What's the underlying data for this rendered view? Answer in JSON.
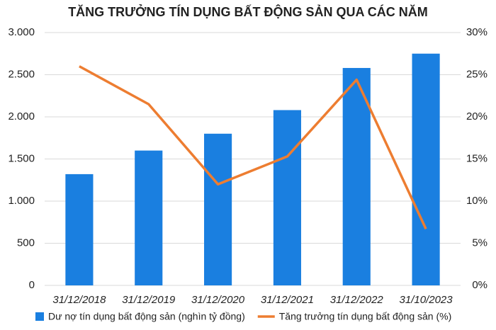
{
  "chart_data": {
    "type": "bar",
    "title": "TĂNG TRƯỞNG TÍN DỤNG BẤT ĐỘNG SẢN QUA CÁC NĂM",
    "categories": [
      "31/12/2018",
      "31/12/2019",
      "31/12/2020",
      "31/12/2021",
      "31/12/2022",
      "31/10/2023"
    ],
    "series": [
      {
        "name": "Dư nợ tín dụng bất động sản (nghìn tỷ đồng)",
        "type": "bar",
        "color": "#1a7fe0",
        "values": [
          1320,
          1600,
          1800,
          2080,
          2580,
          2750
        ]
      },
      {
        "name": "Tăng trưởng tín dụng bất động sản (%)",
        "type": "line",
        "axis": "y2",
        "color": "#ed7d31",
        "values": [
          26,
          21.5,
          12,
          15.3,
          24.4,
          6.7
        ]
      }
    ],
    "ylim": [
      0,
      3000
    ],
    "yticks": [
      0,
      500,
      {
        "value": 1000,
        "label": "1.000"
      },
      {
        "value": 1500,
        "label": "1.500"
      },
      {
        "value": 2000,
        "label": "2.000"
      },
      {
        "value": 2500,
        "label": "2.500"
      },
      {
        "value": 3000,
        "label": "3.000"
      }
    ],
    "y2lim": [
      0,
      30
    ],
    "y2ticks": [
      {
        "value": 0,
        "label": "0%"
      },
      {
        "value": 5,
        "label": "5%"
      },
      {
        "value": 10,
        "label": "10%"
      },
      {
        "value": 15,
        "label": "15%"
      },
      {
        "value": 20,
        "label": "20%"
      },
      {
        "value": 25,
        "label": "25%"
      },
      {
        "value": 30,
        "label": "30%"
      }
    ],
    "grid": true
  }
}
